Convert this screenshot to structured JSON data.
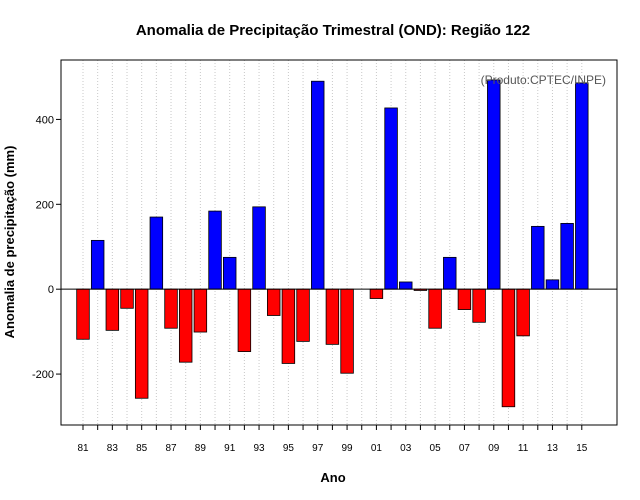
{
  "chart_data": {
    "type": "bar",
    "title": "Anomalia de Precipitação Trimestral (OND): Região 122",
    "xlabel": "Ano",
    "ylabel": "Anomalia de precipitação (mm)",
    "annotation": "(Produto:CPTEC/INPE)",
    "ylim": [
      -320,
      540
    ],
    "y_ticks": [
      -200,
      0,
      200,
      400
    ],
    "y_tick_labels": [
      "-200",
      "0",
      "200",
      "400"
    ],
    "categories": [
      "1981",
      "1982",
      "1983",
      "1984",
      "1985",
      "1986",
      "1987",
      "1988",
      "1989",
      "1990",
      "1991",
      "1992",
      "1993",
      "1994",
      "1995",
      "1996",
      "1997",
      "1998",
      "1999",
      "2000",
      "2001",
      "2002",
      "2003",
      "2004",
      "2005",
      "2006",
      "2007",
      "2008",
      "2009",
      "2010",
      "2011",
      "2012",
      "2013",
      "2014",
      "2015"
    ],
    "x_tick_labels": [
      "81",
      "83",
      "85",
      "87",
      "89",
      "91",
      "93",
      "95",
      "97",
      "99",
      "01",
      "03",
      "05",
      "07",
      "09",
      "11",
      "13",
      "15"
    ],
    "values": [
      -118,
      115,
      -97,
      -45,
      -257,
      170,
      -92,
      -172,
      -101,
      184,
      75,
      -147,
      194,
      -62,
      -175,
      -123,
      490,
      -130,
      -198,
      0,
      -22,
      427,
      17,
      -3,
      -92,
      75,
      -48,
      -78,
      493,
      -277,
      -110,
      148,
      22,
      155,
      486
    ],
    "colors": {
      "positive": "#0000ff",
      "negative": "#ff0000",
      "grid": "#c8c8c8",
      "zero_line": "#000000"
    },
    "grid": true
  }
}
